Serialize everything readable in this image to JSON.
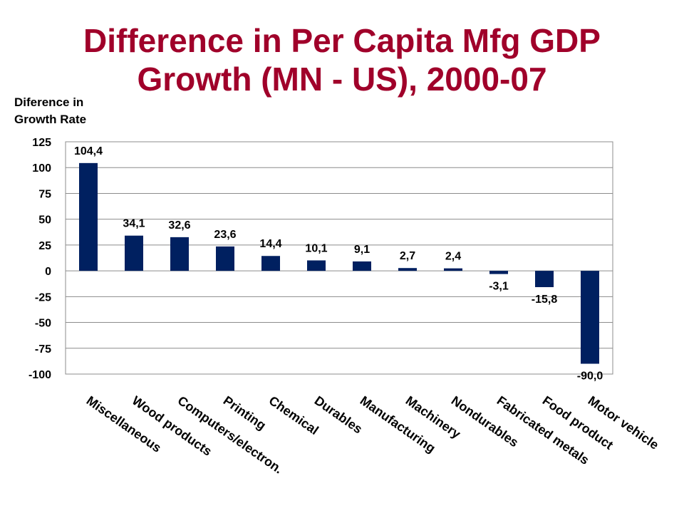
{
  "chart_data": {
    "type": "bar",
    "title_lines": [
      "Difference in Per Capita Mfg GDP",
      "Growth (MN - US), 2000-07"
    ],
    "ylabel_lines": [
      "Diference in",
      "Growth Rate"
    ],
    "xlabel": "",
    "categories": [
      "Miscellaneous",
      "Wood products",
      "Computers/electron.",
      "Printing",
      "Chemical",
      "Durables",
      "Manufacturing",
      "Machinery",
      "Nondurables",
      "Fabricated metals",
      "Food product",
      "Motor vehicle"
    ],
    "values": [
      104.4,
      34.1,
      32.6,
      23.6,
      14.4,
      10.1,
      9.1,
      2.7,
      2.4,
      -3.1,
      -15.8,
      -90.0
    ],
    "data_labels": [
      "104,4",
      "34,1",
      "32,6",
      "23,6",
      "14,4",
      "10,1",
      "9,1",
      "2,7",
      "2,4",
      "-3,1",
      "-15,8",
      "-90,0"
    ],
    "yticks": [
      125,
      100,
      75,
      50,
      25,
      0,
      -25,
      -50,
      -75,
      -100
    ],
    "ylim": [
      -100,
      125
    ],
    "grid": true,
    "legend": "none",
    "bar_color": "#002060"
  }
}
